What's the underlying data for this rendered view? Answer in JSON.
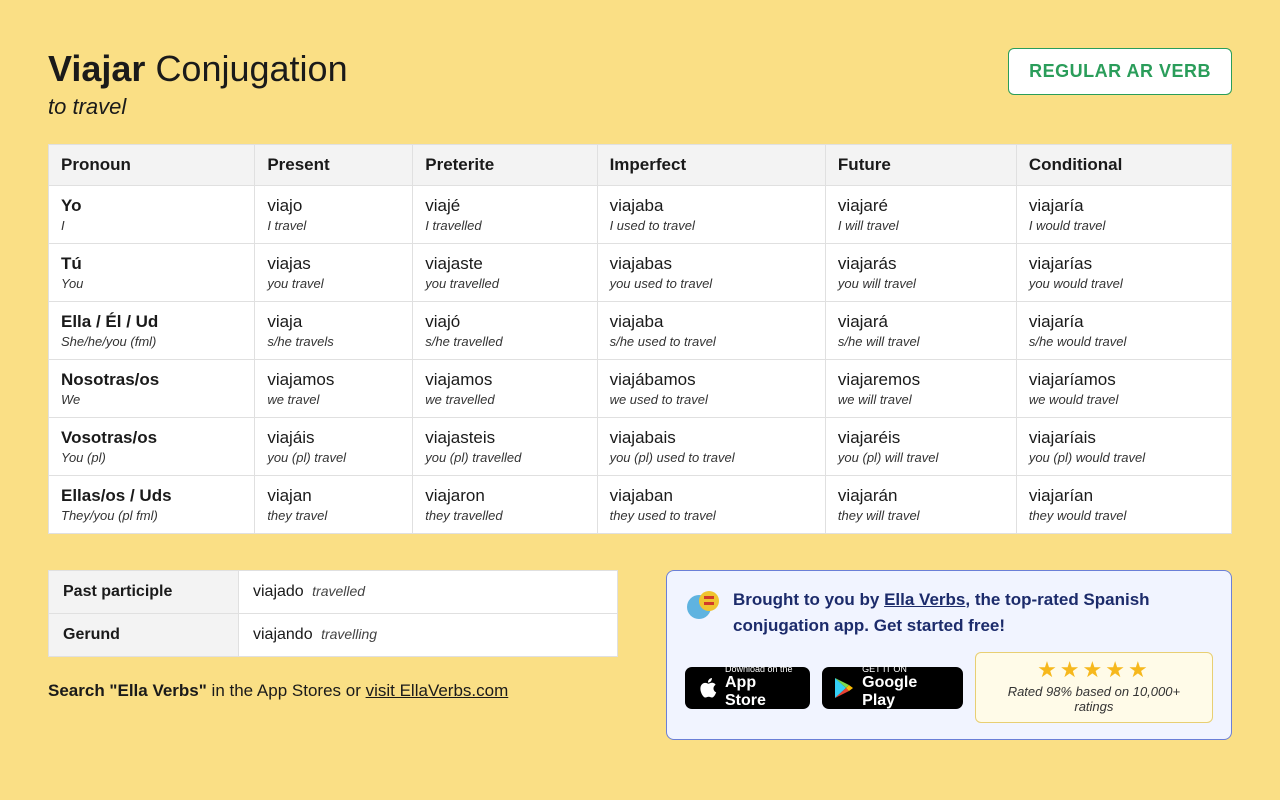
{
  "header": {
    "verb": "Viajar",
    "title_rest": "Conjugation",
    "subtitle": "to travel",
    "badge": "REGULAR AR VERB"
  },
  "columns": [
    "Pronoun",
    "Present",
    "Preterite",
    "Imperfect",
    "Future",
    "Conditional"
  ],
  "rows": [
    {
      "pronoun_es": "Yo",
      "pronoun_en": "I",
      "cells": [
        {
          "es": "viajo",
          "en": "I travel"
        },
        {
          "es": "viajé",
          "en": "I travelled"
        },
        {
          "es": "viajaba",
          "en": "I used to travel"
        },
        {
          "es": "viajaré",
          "en": "I will travel"
        },
        {
          "es": "viajaría",
          "en": "I would travel"
        }
      ]
    },
    {
      "pronoun_es": "Tú",
      "pronoun_en": "You",
      "cells": [
        {
          "es": "viajas",
          "en": "you travel"
        },
        {
          "es": "viajaste",
          "en": "you travelled"
        },
        {
          "es": "viajabas",
          "en": "you used to travel"
        },
        {
          "es": "viajarás",
          "en": "you will travel"
        },
        {
          "es": "viajarías",
          "en": "you would travel"
        }
      ]
    },
    {
      "pronoun_es": "Ella / Él / Ud",
      "pronoun_en": "She/he/you (fml)",
      "cells": [
        {
          "es": "viaja",
          "en": "s/he travels"
        },
        {
          "es": "viajó",
          "en": "s/he travelled"
        },
        {
          "es": "viajaba",
          "en": "s/he used to travel"
        },
        {
          "es": "viajará",
          "en": "s/he will travel"
        },
        {
          "es": "viajaría",
          "en": "s/he would travel"
        }
      ]
    },
    {
      "pronoun_es": "Nosotras/os",
      "pronoun_en": "We",
      "cells": [
        {
          "es": "viajamos",
          "en": "we travel"
        },
        {
          "es": "viajamos",
          "en": "we travelled"
        },
        {
          "es": "viajábamos",
          "en": "we used to travel"
        },
        {
          "es": "viajaremos",
          "en": "we will travel"
        },
        {
          "es": "viajaríamos",
          "en": "we would travel"
        }
      ]
    },
    {
      "pronoun_es": "Vosotras/os",
      "pronoun_en": "You (pl)",
      "cells": [
        {
          "es": "viajáis",
          "en": "you (pl) travel"
        },
        {
          "es": "viajasteis",
          "en": "you (pl) travelled"
        },
        {
          "es": "viajabais",
          "en": "you (pl) used to travel"
        },
        {
          "es": "viajaréis",
          "en": "you (pl) will travel"
        },
        {
          "es": "viajaríais",
          "en": "you (pl) would travel"
        }
      ]
    },
    {
      "pronoun_es": "Ellas/os / Uds",
      "pronoun_en": "They/you (pl fml)",
      "cells": [
        {
          "es": "viajan",
          "en": "they travel"
        },
        {
          "es": "viajaron",
          "en": "they travelled"
        },
        {
          "es": "viajaban",
          "en": "they used to travel"
        },
        {
          "es": "viajarán",
          "en": "they will travel"
        },
        {
          "es": "viajarían",
          "en": "they would travel"
        }
      ]
    }
  ],
  "forms": {
    "past_participle_label": "Past participle",
    "past_participle_es": "viajado",
    "past_participle_en": "travelled",
    "gerund_label": "Gerund",
    "gerund_es": "viajando",
    "gerund_en": "travelling"
  },
  "search_line": {
    "bold": "Search \"Ella Verbs\"",
    "rest": " in the App Stores or ",
    "link": "visit EllaVerbs.com"
  },
  "promo": {
    "text_pre": "Brought to you by ",
    "link": "Ella Verbs",
    "text_post": ", the top-rated Spanish conjugation app. Get started free!",
    "appstore_small": "Download on the",
    "appstore_big": "App Store",
    "play_small": "GET IT ON",
    "play_big": "Google Play",
    "stars": "★★★★★",
    "rating_text": "Rated 98% based on 10,000+ ratings"
  },
  "style": {
    "background": "#fadf85",
    "table_bg": "#ffffff",
    "header_cell_bg": "#f3f3f3",
    "border_color": "#e0e0e0",
    "badge_border": "#2a9d5a",
    "badge_text": "#2a9d5a",
    "promo_border": "#6b7fd7",
    "promo_bg": "#f1f4ff",
    "promo_text": "#1c2b6b",
    "star_color": "#f6b81d",
    "rating_bg": "#fffbe8",
    "rating_border": "#e8cf73"
  }
}
